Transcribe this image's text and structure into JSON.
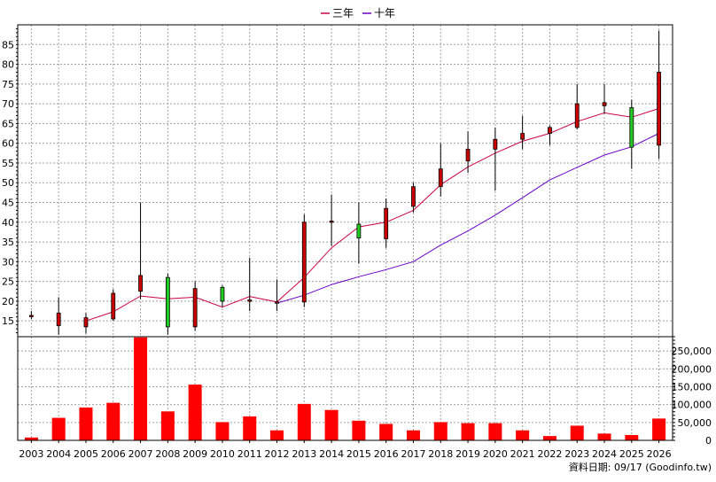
{
  "chart_data": {
    "type": "candlestick",
    "years": [
      "2003",
      "2004",
      "2005",
      "2006",
      "2007",
      "2008",
      "2009",
      "2010",
      "2011",
      "2012",
      "2013",
      "2014",
      "2015",
      "2016",
      "2017",
      "2018",
      "2019",
      "2020",
      "2021",
      "2022",
      "2023",
      "2024",
      "2025",
      "2026"
    ],
    "legend": [
      {
        "label": "三年",
        "color": "#cc0044"
      },
      {
        "label": "十年",
        "color": "#6a00cc"
      }
    ],
    "price_axis": {
      "min": 11,
      "max": 90,
      "ticks": [
        15,
        20,
        25,
        30,
        35,
        40,
        45,
        50,
        55,
        60,
        65,
        70,
        75,
        80,
        85
      ],
      "grid": true
    },
    "volume_axis": {
      "min": 0,
      "max": 290000,
      "ticks": [
        0,
        50000,
        100000,
        150000,
        200000,
        250000
      ],
      "tick_labels": [
        "0",
        "50,000",
        "100,000",
        "150,000",
        "200,000",
        "250,000"
      ]
    },
    "candles": [
      {
        "year": "2003",
        "open": 16.2,
        "close": 16.4,
        "high": 17.5,
        "low": 15.5
      },
      {
        "year": "2004",
        "open": 13.8,
        "close": 17.0,
        "high": 21.0,
        "low": 11.5
      },
      {
        "year": "2005",
        "open": 13.5,
        "close": 15.8,
        "high": 17.0,
        "low": 11.8
      },
      {
        "year": "2006",
        "open": 15.5,
        "close": 22.0,
        "high": 23.0,
        "low": 15.0
      },
      {
        "year": "2007",
        "open": 22.5,
        "close": 26.5,
        "high": 45.0,
        "low": 20.5
      },
      {
        "year": "2008",
        "open": 26.0,
        "close": 13.5,
        "high": 27.0,
        "low": 11.5
      },
      {
        "year": "2009",
        "open": 13.5,
        "close": 23.2,
        "high": 25.0,
        "low": 12.5
      },
      {
        "year": "2010",
        "open": 23.5,
        "close": 20.0,
        "high": 24.0,
        "low": 18.5
      },
      {
        "year": "2011",
        "open": 20.0,
        "close": 20.3,
        "high": 31.0,
        "low": 17.5
      },
      {
        "year": "2012",
        "open": 19.5,
        "close": 19.8,
        "high": 25.5,
        "low": 17.5
      },
      {
        "year": "2013",
        "open": 19.8,
        "close": 40.0,
        "high": 42.0,
        "low": 18.5
      },
      {
        "year": "2014",
        "open": 40.0,
        "close": 40.3,
        "high": 47.0,
        "low": 34.0
      },
      {
        "year": "2015",
        "open": 39.5,
        "close": 36.0,
        "high": 45.0,
        "low": 29.5
      },
      {
        "year": "2016",
        "open": 35.8,
        "close": 43.5,
        "high": 46.0,
        "low": 33.5
      },
      {
        "year": "2017",
        "open": 44.0,
        "close": 49.0,
        "high": 50.0,
        "low": 42.5
      },
      {
        "year": "2018",
        "open": 49.0,
        "close": 53.5,
        "high": 60.0,
        "low": 46.5
      },
      {
        "year": "2019",
        "open": 55.5,
        "close": 58.5,
        "high": 63.0,
        "low": 52.5
      },
      {
        "year": "2020",
        "open": 58.5,
        "close": 61.0,
        "high": 64.0,
        "low": 48.0
      },
      {
        "year": "2021",
        "open": 61.0,
        "close": 62.5,
        "high": 67.0,
        "low": 58.5
      },
      {
        "year": "2022",
        "open": 62.5,
        "close": 64.0,
        "high": 64.5,
        "low": 59.5
      },
      {
        "year": "2023",
        "open": 64.0,
        "close": 70.0,
        "high": 75.0,
        "low": 63.5
      },
      {
        "year": "2024",
        "open": 69.5,
        "close": 70.3,
        "high": 75.0,
        "low": 67.5
      },
      {
        "year": "2025",
        "open": 69.0,
        "close": 59.0,
        "high": 71.0,
        "low": 53.5
      },
      {
        "year": "2026",
        "open": 59.5,
        "close": 78.0,
        "high": 88.5,
        "low": 56.0
      }
    ],
    "series": [
      {
        "name": "三年",
        "color": "#cc0044",
        "x": [
          "2005",
          "2006",
          "2007",
          "2008",
          "2009",
          "2010",
          "2011",
          "2012",
          "2013",
          "2014",
          "2015",
          "2016",
          "2017",
          "2018",
          "2019",
          "2020",
          "2021",
          "2022",
          "2023",
          "2024",
          "2025",
          "2026"
        ],
        "values": [
          15.0,
          17.3,
          21.3,
          20.6,
          21.0,
          18.5,
          21.2,
          19.8,
          26.0,
          33.5,
          38.8,
          40.0,
          43.0,
          49.5,
          54.0,
          57.5,
          60.5,
          62.5,
          65.5,
          67.7,
          66.6,
          68.8
        ]
      },
      {
        "name": "十年",
        "color": "#6a00cc",
        "x": [
          "2012",
          "2013",
          "2014",
          "2015",
          "2016",
          "2017",
          "2018",
          "2019",
          "2020",
          "2021",
          "2022",
          "2023",
          "2024",
          "2025",
          "2026"
        ],
        "values": [
          19.5,
          21.5,
          24.2,
          26.2,
          28.0,
          30.0,
          34.2,
          37.8,
          41.8,
          46.2,
          50.7,
          53.9,
          57.0,
          59.1,
          62.5
        ]
      }
    ],
    "volume": [
      {
        "year": "2003",
        "value": 8000
      },
      {
        "year": "2004",
        "value": 63000
      },
      {
        "year": "2005",
        "value": 92000
      },
      {
        "year": "2006",
        "value": 105000
      },
      {
        "year": "2007",
        "value": 288000
      },
      {
        "year": "2008",
        "value": 81000
      },
      {
        "year": "2009",
        "value": 156000
      },
      {
        "year": "2010",
        "value": 51000
      },
      {
        "year": "2011",
        "value": 67000
      },
      {
        "year": "2012",
        "value": 28000
      },
      {
        "year": "2013",
        "value": 102000
      },
      {
        "year": "2014",
        "value": 85000
      },
      {
        "year": "2015",
        "value": 55000
      },
      {
        "year": "2016",
        "value": 46000
      },
      {
        "year": "2017",
        "value": 28000
      },
      {
        "year": "2018",
        "value": 51000
      },
      {
        "year": "2019",
        "value": 48000
      },
      {
        "year": "2020",
        "value": 48000
      },
      {
        "year": "2021",
        "value": 28000
      },
      {
        "year": "2022",
        "value": 12000
      },
      {
        "year": "2023",
        "value": 41000
      },
      {
        "year": "2024",
        "value": 19000
      },
      {
        "year": "2025",
        "value": 15000
      },
      {
        "year": "2026",
        "value": 61000
      }
    ],
    "colors": {
      "up": "#cc0000",
      "down": "#22cc22",
      "volume": "#ff0000",
      "grid": "#a0a0a0",
      "axis": "#000000"
    },
    "footer": "資料日期: 09/17 (Goodinfo.tw)"
  }
}
